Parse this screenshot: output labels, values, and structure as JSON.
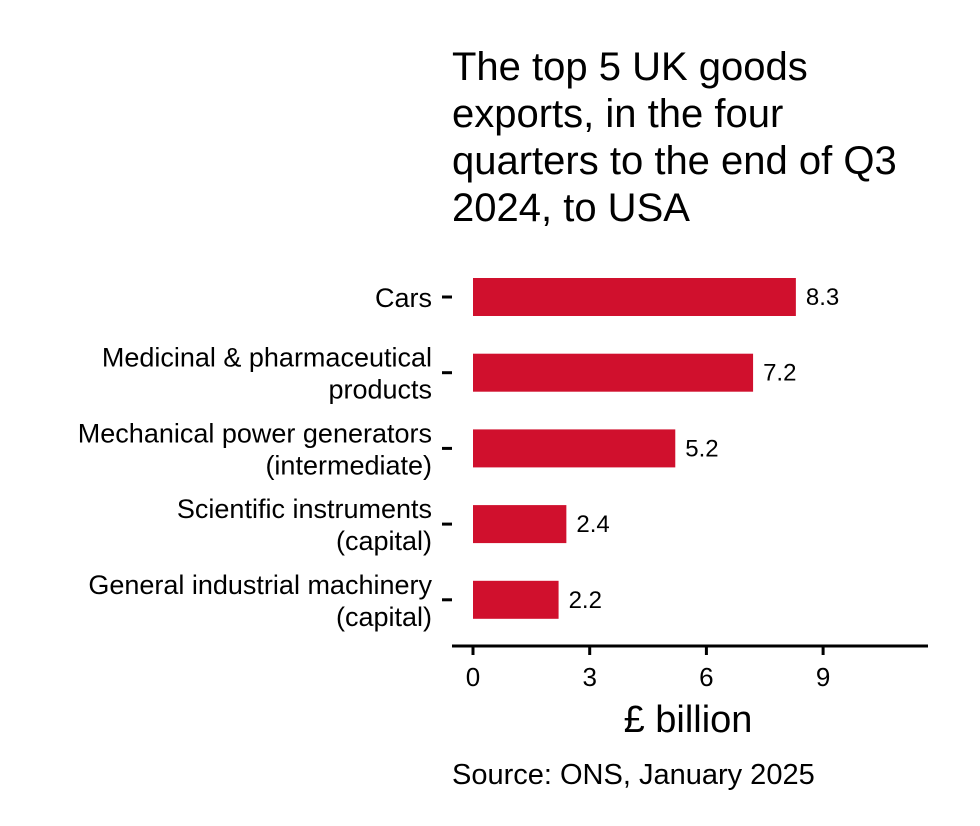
{
  "chart_data": {
    "type": "bar",
    "orientation": "horizontal",
    "title_lines": [
      "The top 5 UK goods",
      "exports, in the four",
      "quarters to the end of Q3",
      "2024, to USA"
    ],
    "categories": [
      [
        "Cars"
      ],
      [
        "Medicinal & pharmaceutical",
        "products"
      ],
      [
        "Mechanical power generators",
        "(intermediate)"
      ],
      [
        "Scientific instruments",
        "(capital)"
      ],
      [
        "General industrial machinery",
        "(capital)"
      ]
    ],
    "values": [
      8.3,
      7.2,
      5.2,
      2.4,
      2.2
    ],
    "value_labels": [
      "8.3",
      "7.2",
      "5.2",
      "2.4",
      "2.2"
    ],
    "xticks": [
      0,
      3,
      6,
      9
    ],
    "xtick_labels": [
      "0",
      "3",
      "6",
      "9"
    ],
    "xlim": [
      0,
      11.75
    ],
    "xlabel": "£ billion",
    "source": "Source: ONS, January 2025",
    "bar_color": "#d0102d",
    "grid": false
  }
}
